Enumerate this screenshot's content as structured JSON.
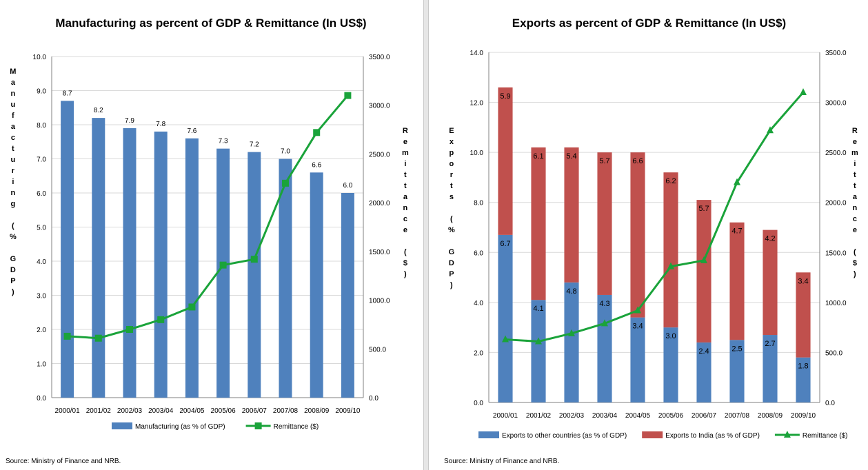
{
  "source_text": "Source: Ministry of Finance and NRB.",
  "colors": {
    "blue": "#4f81bd",
    "red": "#c0504d",
    "green": "#1aa33a",
    "grid": "#d9d9d9"
  },
  "chart_data": [
    {
      "type": "bar",
      "title": "Manufacturing as percent of GDP & Remittance (In US$)",
      "ylabel": "Manufacturing (% GDP)",
      "y2label": "Remittance ($)",
      "categories": [
        "2000/01",
        "2001/02",
        "2002/03",
        "2003/04",
        "2004/05",
        "2005/06",
        "2006/07",
        "2007/08",
        "2008/09",
        "2009/10"
      ],
      "ylim": [
        0,
        10
      ],
      "y_ticks": [
        "0.0",
        "1.0",
        "2.0",
        "3.0",
        "4.0",
        "5.0",
        "6.0",
        "7.0",
        "8.0",
        "9.0",
        "10.0"
      ],
      "y2lim": [
        0,
        3500
      ],
      "y2_ticks": [
        "0.0",
        "500.0",
        "1000.0",
        "1500.0",
        "2000.0",
        "2500.0",
        "3000.0",
        "3500.0"
      ],
      "bar_series": [
        {
          "name": "Manufacturing (as % of GDP)",
          "values": [
            8.7,
            8.2,
            7.9,
            7.8,
            7.6,
            7.3,
            7.2,
            7.0,
            6.6,
            6.0
          ],
          "labels": [
            "8.7",
            "8.2",
            "7.9",
            "7.8",
            "7.6",
            "7.3",
            "7.2",
            "7.0",
            "6.6",
            "6.0"
          ]
        }
      ],
      "line_series": {
        "name": "Remittance ($)",
        "axis": "secondary",
        "values": [
          630,
          610,
          700,
          800,
          930,
          1360,
          1420,
          2200,
          2720,
          3100
        ]
      },
      "grid": true,
      "legend": "bottom"
    },
    {
      "type": "bar",
      "stacked": true,
      "title": "Exports as percent of GDP & Remittance (In US$)",
      "ylabel": "Exports (% GDP)",
      "y2label": "Remittance ($)",
      "categories": [
        "2000/01",
        "2001/02",
        "2002/03",
        "2003/04",
        "2004/05",
        "2005/06",
        "2006/07",
        "2007/08",
        "2008/09",
        "2009/10"
      ],
      "ylim": [
        0,
        14
      ],
      "y_ticks": [
        "0.0",
        "2.0",
        "4.0",
        "6.0",
        "8.0",
        "10.0",
        "12.0",
        "14.0"
      ],
      "y2lim": [
        0,
        3500
      ],
      "y2_ticks": [
        "0.0",
        "500.0",
        "1000.0",
        "1500.0",
        "2000.0",
        "2500.0",
        "3000.0",
        "3500.0"
      ],
      "bar_series": [
        {
          "name": "Exports to other countries (as % of GDP)",
          "values": [
            6.7,
            4.1,
            4.8,
            4.3,
            3.4,
            3.0,
            2.4,
            2.5,
            2.7,
            1.8
          ],
          "labels": [
            "6.7",
            "4.1",
            "4.8",
            "4.3",
            "3.4",
            "3.0",
            "2.4",
            "2.5",
            "2.7",
            "1.8"
          ]
        },
        {
          "name": "Exports to India (as % of GDP)",
          "values": [
            5.9,
            6.1,
            5.4,
            5.7,
            6.6,
            6.2,
            5.7,
            4.7,
            4.2,
            3.4
          ],
          "labels": [
            "5.9",
            "6.1",
            "5.4",
            "5.7",
            "6.6",
            "6.2",
            "5.7",
            "4.7",
            "4.2",
            "3.4"
          ]
        }
      ],
      "line_series": {
        "name": "Remittance ($)",
        "axis": "secondary",
        "values": [
          630,
          610,
          690,
          790,
          920,
          1360,
          1420,
          2200,
          2720,
          3100
        ]
      },
      "grid": true,
      "legend": "bottom"
    }
  ]
}
